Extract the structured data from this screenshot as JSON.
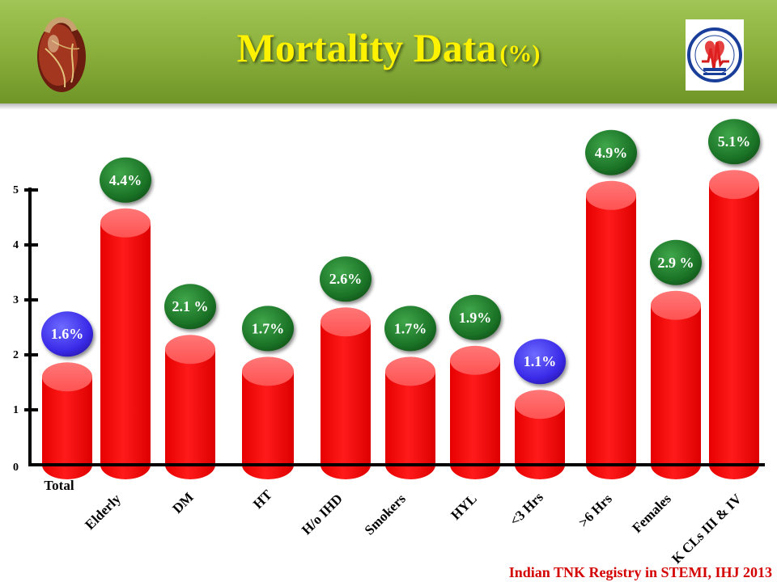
{
  "title": {
    "main": "Mortality Data",
    "unit": "(%)"
  },
  "logos": {
    "left": "heart-icon",
    "right": "cardiological-society-logo-icon"
  },
  "citation": "Indian  TNK Registry in STEMI, IHJ 2013",
  "colors": {
    "bar": "#ff0000",
    "label_green": "#1e7a28",
    "label_blue": "#3a2ae8",
    "header": "#8db23e",
    "title": "#fff200",
    "citation": "#d40000"
  },
  "chart_data": {
    "type": "bar",
    "title": "Mortality Data (%)",
    "categories": [
      "Total",
      "Elderly",
      "DM",
      "HT",
      "H/o IHD",
      "Smokers",
      "HYL",
      "<3 Hrs",
      ">6 Hrs",
      "Females",
      "K CLs III & IV"
    ],
    "values": [
      1.6,
      4.4,
      2.1,
      1.7,
      2.6,
      1.7,
      1.9,
      1.1,
      4.9,
      2.9,
      5.1
    ],
    "data_labels": [
      "1.6%",
      "4.4%",
      "2.1 %",
      "1.7%",
      "2.6%",
      "1.7%",
      "1.9%",
      "1.1%",
      "4.9%",
      "2.9 %",
      "5.1%"
    ],
    "label_colors": [
      "blue",
      "green",
      "green",
      "green",
      "green",
      "green",
      "green",
      "blue",
      "green",
      "green",
      "green"
    ],
    "y_ticks": [
      0,
      1,
      2,
      3,
      4,
      5
    ],
    "ylim": [
      0,
      5
    ],
    "xlabel": "",
    "ylabel": "",
    "grid": false,
    "legend": "none"
  }
}
